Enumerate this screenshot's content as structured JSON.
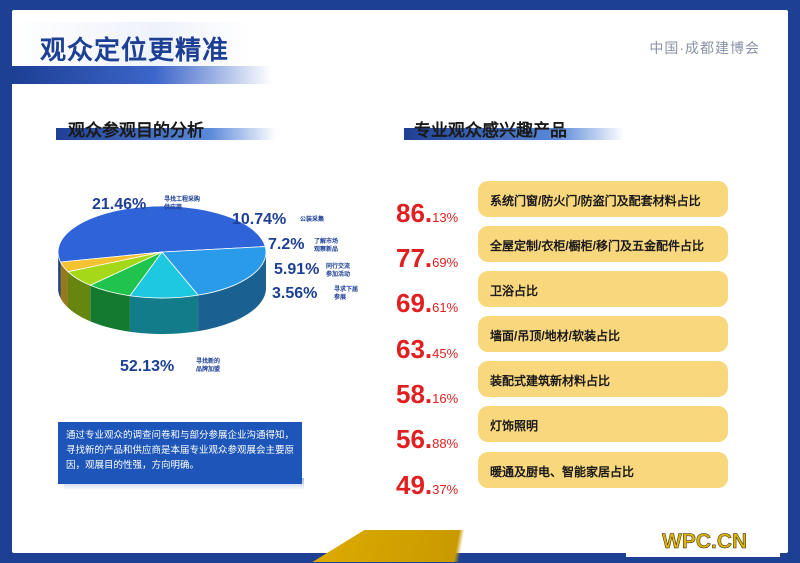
{
  "header": {
    "title": "观众定位更精准",
    "brand": "中国·成都建博会"
  },
  "left": {
    "section_title": "观众参观目的分析",
    "note": "通过专业观众的调查问卷和与部分参展企业沟通得知，寻找新的产品和供应商是本届专业观众参观展会主要原因，观展目的性强，方向明确。"
  },
  "right": {
    "section_title": "专业观众感兴趣产品"
  },
  "chart_data": {
    "type": "pie",
    "slices": [
      {
        "label": "寻找新的品牌加盟",
        "value": 52.13,
        "int": "52.13%",
        "color": "#2f64d8"
      },
      {
        "label": "寻找工程采购供应商",
        "value": 21.46,
        "int": "21.46%",
        "color": "#2a9be8"
      },
      {
        "label": "公装采集",
        "value": 10.74,
        "int": "10.74%",
        "color": "#1ec8e0"
      },
      {
        "label": "了解市场观察新品",
        "value": 7.2,
        "int": "7.2%",
        "color": "#20c44c"
      },
      {
        "label": "同行交流参加活动",
        "value": 5.91,
        "int": "5.91%",
        "color": "#a6d81a"
      },
      {
        "label": "寻求下届参展",
        "value": 3.56,
        "int": "3.56%",
        "color": "#f2c230"
      }
    ]
  },
  "products": [
    {
      "int": "86.",
      "dec": "13%",
      "label": "系统门窗/防火门/防盗门及配套材料占比"
    },
    {
      "int": "77.",
      "dec": "69%",
      "label": "全屋定制/衣柜/橱柜/移门及五金配件占比"
    },
    {
      "int": "69.",
      "dec": "61%",
      "label": "卫浴占比"
    },
    {
      "int": "63.",
      "dec": "45%",
      "label": "墙面/吊顶/地材/软装占比"
    },
    {
      "int": "58.",
      "dec": "16%",
      "label": "装配式建筑新材料占比"
    },
    {
      "int": "56.",
      "dec": "88%",
      "label": "灯饰照明"
    },
    {
      "int": "49.",
      "dec": "37%",
      "label": "暖通及厨电、智能家居占比"
    }
  ],
  "watermark": "WPC.CN"
}
